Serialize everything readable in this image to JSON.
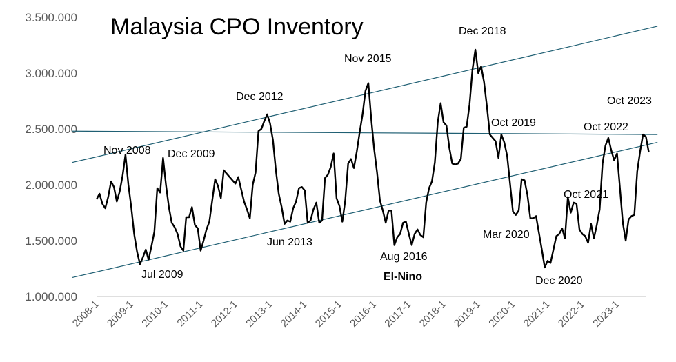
{
  "chart_data": {
    "type": "line",
    "title": "Malaysia CPO Inventory",
    "xlabel": "",
    "ylabel": "",
    "ylim": [
      1000000,
      3500000
    ],
    "y_ticks": [
      "1.000.000",
      "1.500.000",
      "2.000.000",
      "2.500.000",
      "3.000.000",
      "3.500.000"
    ],
    "y_tick_values": [
      1000000,
      1500000,
      2000000,
      2500000,
      3000000,
      3500000
    ],
    "x_ticks": [
      "2008-1",
      "2009-1",
      "2010-1",
      "2011-1",
      "2012-1",
      "2013-1",
      "2014-1",
      "2015-1",
      "2016-1",
      "2017-1",
      "2018-1",
      "2019-1",
      "2020-1",
      "2021-1",
      "2022-1",
      "2023-1"
    ],
    "grid": false,
    "legend": "none",
    "series": [
      {
        "values": [
          1870000,
          1920000,
          1830000,
          1790000,
          1890000,
          2030000,
          1980000,
          1850000,
          1940000,
          2080000,
          2270000,
          2000000,
          1800000,
          1560000,
          1400000,
          1290000,
          1350000,
          1420000,
          1330000,
          1450000,
          1580000,
          1970000,
          1930000,
          2240000,
          2000000,
          1800000,
          1660000,
          1620000,
          1560000,
          1450000,
          1410000,
          1710000,
          1710000,
          1800000,
          1640000,
          1610000,
          1410000,
          1500000,
          1600000,
          1670000,
          1860000,
          2050000,
          1990000,
          1880000,
          2130000,
          2100000,
          2070000,
          2040000,
          2010000,
          2070000,
          1960000,
          1850000,
          1780000,
          1700000,
          2000000,
          2110000,
          2480000,
          2500000,
          2570000,
          2630000,
          2550000,
          2400000,
          2130000,
          1920000,
          1800000,
          1650000,
          1680000,
          1670000,
          1790000,
          1850000,
          1970000,
          1980000,
          1950000,
          1660000,
          1680000,
          1780000,
          1840000,
          1660000,
          1680000,
          2060000,
          2090000,
          2160000,
          2280000,
          1880000,
          1810000,
          1670000,
          1860000,
          2190000,
          2230000,
          2150000,
          2300000,
          2470000,
          2630000,
          2840000,
          2910000,
          2590000,
          2320000,
          2110000,
          1860000,
          1770000,
          1660000,
          1770000,
          1770000,
          1460000,
          1530000,
          1560000,
          1660000,
          1670000,
          1560000,
          1460000,
          1560000,
          1600000,
          1550000,
          1530000,
          1840000,
          1970000,
          2030000,
          2200000,
          2560000,
          2730000,
          2560000,
          2530000,
          2330000,
          2190000,
          2180000,
          2190000,
          2230000,
          2510000,
          2520000,
          2720000,
          3030000,
          3210000,
          3000000,
          3060000,
          2920000,
          2700000,
          2450000,
          2420000,
          2390000,
          2240000,
          2450000,
          2380000,
          2260000,
          2010000,
          1760000,
          1730000,
          1770000,
          2050000,
          2040000,
          1910000,
          1700000,
          1700000,
          1720000,
          1570000,
          1420000,
          1260000,
          1320000,
          1300000,
          1420000,
          1540000,
          1560000,
          1610000,
          1520000,
          1890000,
          1750000,
          1840000,
          1830000,
          1600000,
          1560000,
          1540000,
          1480000,
          1650000,
          1520000,
          1640000,
          1780000,
          2190000,
          2350000,
          2420000,
          2310000,
          2220000,
          2280000,
          1970000,
          1660000,
          1500000,
          1690000,
          1720000,
          1730000,
          2120000,
          2300000,
          2450000,
          2430000,
          2290000
        ]
      }
    ],
    "trendlines": [
      {
        "from": {
          "x": "2008-1",
          "y": 2200000
        },
        "to": {
          "x": "2024-3",
          "y": 3420000
        }
      },
      {
        "from": {
          "x": "2008-1",
          "y": 1170000
        },
        "to": {
          "x": "2024-3",
          "y": 2380000
        }
      },
      {
        "from": {
          "x": "2008-1",
          "y": 2480000
        },
        "to": {
          "x": "2024-3",
          "y": 2450000
        }
      }
    ],
    "annotations": [
      {
        "text": "Nov 2008",
        "bold": false
      },
      {
        "text": "Jul 2009",
        "bold": false
      },
      {
        "text": "Dec 2009",
        "bold": false
      },
      {
        "text": "Dec 2012",
        "bold": false
      },
      {
        "text": "Jun 2013",
        "bold": false
      },
      {
        "text": "Nov 2015",
        "bold": false
      },
      {
        "text": "Aug 2016",
        "bold": false
      },
      {
        "text": "El-Nino",
        "bold": true
      },
      {
        "text": "Dec 2018",
        "bold": false
      },
      {
        "text": "Oct 2019",
        "bold": false
      },
      {
        "text": "Mar 2020",
        "bold": false
      },
      {
        "text": "Dec 2020",
        "bold": false
      },
      {
        "text": "Oct 2021",
        "bold": false
      },
      {
        "text": "Oct 2022",
        "bold": false
      },
      {
        "text": "Oct 2023",
        "bold": false
      }
    ],
    "colors": {
      "line": "#000000",
      "trendline": "#1f5f73",
      "axis": "#bfbfbf",
      "tick_text": "#595959"
    }
  }
}
